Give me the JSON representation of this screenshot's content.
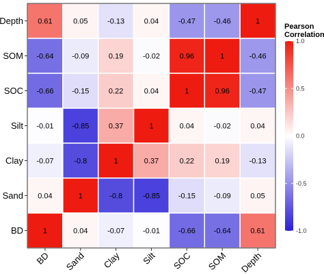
{
  "chart_data": {
    "type": "heatmap",
    "x_categories": [
      "BD",
      "Sand",
      "Clay",
      "Silt",
      "SOC",
      "SOM",
      "Depth"
    ],
    "y_categories": [
      "Depth",
      "SOM",
      "SOC",
      "Silt",
      "Clay",
      "Sand",
      "BD"
    ],
    "values": [
      [
        0.61,
        0.05,
        -0.13,
        0.04,
        -0.47,
        -0.46,
        1
      ],
      [
        -0.64,
        -0.09,
        0.19,
        -0.02,
        0.96,
        1,
        -0.46
      ],
      [
        -0.66,
        -0.15,
        0.22,
        0.04,
        1,
        0.96,
        -0.47
      ],
      [
        -0.01,
        -0.85,
        0.37,
        1,
        0.04,
        -0.02,
        0.04
      ],
      [
        -0.07,
        -0.8,
        1,
        0.37,
        0.22,
        0.19,
        -0.13
      ],
      [
        0.04,
        1,
        -0.8,
        -0.85,
        -0.15,
        -0.09,
        0.05
      ],
      [
        1,
        0.04,
        -0.07,
        -0.01,
        -0.66,
        -0.64,
        0.61
      ]
    ],
    "legend": {
      "title_lines": [
        "Pearson",
        "Correlation"
      ],
      "ticks": [
        1.0,
        0.5,
        0.0,
        -0.5,
        -1.0
      ],
      "tick_labels": [
        "1.0",
        "0.5",
        "0.0",
        "-0.5",
        "-1.0"
      ],
      "range": [
        -1,
        1
      ],
      "colors": {
        "low": "#2b1fd6",
        "mid": "#ffffff",
        "high": "#ee1c10"
      },
      "placement": "right"
    },
    "title": "",
    "xlabel": "",
    "ylabel": ""
  }
}
